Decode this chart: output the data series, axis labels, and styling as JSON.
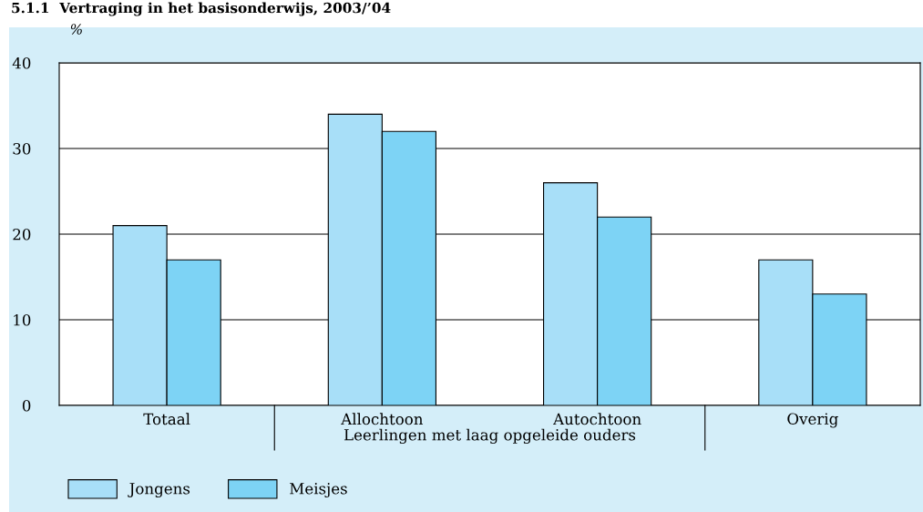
{
  "chart_data": {
    "type": "bar",
    "title": "5.1.1  Vertraging in het basisonderwijs, 2003/’04",
    "ylabel": "%",
    "categories": [
      "Totaal",
      "Allochtoon",
      "Autochtoon",
      "Overig"
    ],
    "series": [
      {
        "name": "Jongens",
        "color": "#a8dff8",
        "values": [
          21,
          34,
          26,
          17
        ]
      },
      {
        "name": "Meisjes",
        "color": "#7dd3f5",
        "values": [
          17,
          32,
          22,
          13
        ]
      }
    ],
    "annotations": [
      "Leerlingen met laag opgeleide ouders"
    ],
    "ylim": [
      0,
      40
    ],
    "yticks": [
      0,
      10,
      20,
      30,
      40
    ],
    "grid": "y",
    "legend": "bottom left"
  }
}
